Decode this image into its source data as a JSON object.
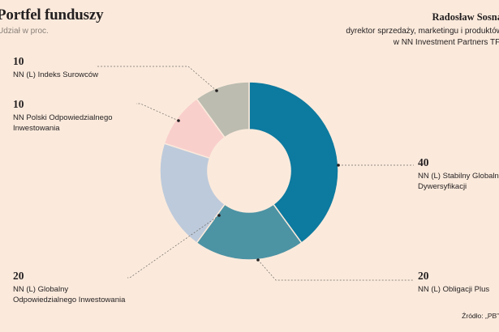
{
  "header": {
    "title": "Portfel funduszy",
    "subtitle": "Udział w proc."
  },
  "person": {
    "name": "Radosław Sosna",
    "role_line1": "dyrektor sprzedaży, marketingu i produktów",
    "role_line2": "w NN Investment Partners TFI"
  },
  "source": "Źródło: „PB”",
  "chart_data": {
    "type": "pie",
    "donut": true,
    "unit": "proc.",
    "slices": [
      {
        "label": "NN (L) Stabilny Globalnej Dywersyfikacji",
        "value": 40,
        "color": "#0d7a9f"
      },
      {
        "label": "NN (L) Obligacji Plus",
        "value": 20,
        "color": "#4c93a4"
      },
      {
        "label": "NN (L) Globalny Odpowiedzialnego Inwestowania",
        "value": 20,
        "color": "#bdcadb"
      },
      {
        "label": "NN Polski Odpowiedzialnego Inwestowania",
        "value": 10,
        "color": "#f9cfcc"
      },
      {
        "label": "NN (L) Indeks Surowców",
        "value": 10,
        "color": "#bcbcb0"
      }
    ],
    "labels": [
      {
        "value": "40",
        "line1": "NN (L) Stabilny Globalnej",
        "line2": "Dywersyfikacji"
      },
      {
        "value": "20",
        "line1": "NN (L) Obligacji Plus",
        "line2": ""
      },
      {
        "value": "20",
        "line1": "NN (L) Globalny",
        "line2": "Odpowiedzialnego Inwestowania"
      },
      {
        "value": "10",
        "line1": "NN Polski Odpowiedzialnego",
        "line2": "Inwestowania"
      },
      {
        "value": "10",
        "line1": "NN (L) Indeks Surowców",
        "line2": ""
      }
    ]
  }
}
